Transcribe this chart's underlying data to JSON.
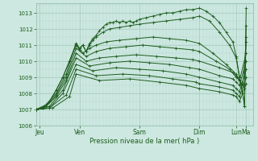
{
  "xlabel": "Pression niveau de la mer( hPa )",
  "ylim": [
    1006.0,
    1013.6
  ],
  "xlim": [
    0,
    130
  ],
  "bg_color": "#cce8e0",
  "grid_color_minor": "#b8d8d0",
  "grid_color_major": "#a8ccbf",
  "line_color": "#1e5c1e",
  "day_labels": [
    "Jeu",
    "Ven",
    "Sam",
    "Dim",
    "Lun",
    "Ma"
  ],
  "day_positions": [
    2,
    26,
    62,
    98,
    120,
    126
  ],
  "yticks": [
    1006,
    1007,
    1008,
    1009,
    1010,
    1011,
    1012,
    1013
  ],
  "series": [
    [
      [
        0,
        1007.0
      ],
      [
        4,
        1007.1
      ],
      [
        8,
        1007.5
      ],
      [
        12,
        1008.2
      ],
      [
        16,
        1009.0
      ],
      [
        20,
        1010.0
      ],
      [
        24,
        1011.1
      ],
      [
        26,
        1010.8
      ],
      [
        28,
        1011.0
      ],
      [
        30,
        1010.6
      ],
      [
        32,
        1011.1
      ],
      [
        34,
        1011.4
      ],
      [
        36,
        1011.6
      ],
      [
        38,
        1011.9
      ],
      [
        40,
        1012.1
      ],
      [
        42,
        1012.3
      ],
      [
        44,
        1012.4
      ],
      [
        46,
        1012.4
      ],
      [
        48,
        1012.5
      ],
      [
        50,
        1012.4
      ],
      [
        52,
        1012.5
      ],
      [
        54,
        1012.4
      ],
      [
        56,
        1012.5
      ],
      [
        58,
        1012.4
      ],
      [
        60,
        1012.5
      ],
      [
        62,
        1012.6
      ],
      [
        66,
        1012.7
      ],
      [
        70,
        1012.8
      ],
      [
        74,
        1012.9
      ],
      [
        78,
        1013.0
      ],
      [
        82,
        1013.0
      ],
      [
        86,
        1013.1
      ],
      [
        90,
        1013.2
      ],
      [
        94,
        1013.2
      ],
      [
        98,
        1013.3
      ],
      [
        102,
        1013.1
      ],
      [
        106,
        1012.8
      ],
      [
        110,
        1012.4
      ],
      [
        114,
        1011.8
      ],
      [
        118,
        1011.2
      ],
      [
        120,
        1010.3
      ],
      [
        122,
        1009.0
      ],
      [
        124,
        1008.0
      ],
      [
        125,
        1007.2
      ],
      [
        126,
        1013.3
      ]
    ],
    [
      [
        0,
        1007.0
      ],
      [
        4,
        1007.1
      ],
      [
        8,
        1007.5
      ],
      [
        12,
        1008.2
      ],
      [
        16,
        1009.0
      ],
      [
        20,
        1010.0
      ],
      [
        24,
        1011.0
      ],
      [
        26,
        1010.7
      ],
      [
        28,
        1011.0
      ],
      [
        30,
        1010.6
      ],
      [
        32,
        1011.0
      ],
      [
        34,
        1011.3
      ],
      [
        36,
        1011.5
      ],
      [
        40,
        1011.8
      ],
      [
        44,
        1012.0
      ],
      [
        50,
        1012.1
      ],
      [
        56,
        1012.2
      ],
      [
        62,
        1012.3
      ],
      [
        70,
        1012.4
      ],
      [
        78,
        1012.5
      ],
      [
        86,
        1012.6
      ],
      [
        94,
        1012.7
      ],
      [
        98,
        1012.8
      ],
      [
        104,
        1012.5
      ],
      [
        110,
        1011.8
      ],
      [
        116,
        1011.0
      ],
      [
        120,
        1010.2
      ],
      [
        122,
        1009.0
      ],
      [
        124,
        1008.0
      ],
      [
        125,
        1007.2
      ],
      [
        126,
        1012.2
      ]
    ],
    [
      [
        0,
        1007.0
      ],
      [
        6,
        1007.3
      ],
      [
        12,
        1008.0
      ],
      [
        18,
        1009.2
      ],
      [
        24,
        1011.1
      ],
      [
        28,
        1010.5
      ],
      [
        32,
        1010.8
      ],
      [
        36,
        1011.0
      ],
      [
        42,
        1011.2
      ],
      [
        50,
        1011.3
      ],
      [
        60,
        1011.4
      ],
      [
        70,
        1011.5
      ],
      [
        80,
        1011.4
      ],
      [
        90,
        1011.3
      ],
      [
        98,
        1011.1
      ],
      [
        106,
        1010.5
      ],
      [
        114,
        1009.8
      ],
      [
        120,
        1009.2
      ],
      [
        122,
        1008.8
      ],
      [
        124,
        1008.5
      ],
      [
        125,
        1008.3
      ],
      [
        126,
        1011.5
      ]
    ],
    [
      [
        0,
        1007.0
      ],
      [
        6,
        1007.2
      ],
      [
        12,
        1007.9
      ],
      [
        18,
        1009.0
      ],
      [
        24,
        1010.8
      ],
      [
        30,
        1010.3
      ],
      [
        36,
        1010.6
      ],
      [
        44,
        1010.8
      ],
      [
        54,
        1010.9
      ],
      [
        64,
        1011.0
      ],
      [
        74,
        1010.9
      ],
      [
        84,
        1010.8
      ],
      [
        94,
        1010.7
      ],
      [
        98,
        1010.6
      ],
      [
        108,
        1010.0
      ],
      [
        116,
        1009.5
      ],
      [
        120,
        1009.0
      ],
      [
        122,
        1008.8
      ],
      [
        124,
        1008.5
      ],
      [
        126,
        1011.2
      ]
    ],
    [
      [
        0,
        1007.0
      ],
      [
        6,
        1007.2
      ],
      [
        12,
        1007.8
      ],
      [
        18,
        1008.8
      ],
      [
        24,
        1010.5
      ],
      [
        30,
        1010.0
      ],
      [
        38,
        1010.2
      ],
      [
        48,
        1010.3
      ],
      [
        60,
        1010.4
      ],
      [
        72,
        1010.3
      ],
      [
        84,
        1010.2
      ],
      [
        94,
        1010.1
      ],
      [
        98,
        1010.0
      ],
      [
        110,
        1009.6
      ],
      [
        118,
        1009.3
      ],
      [
        120,
        1009.1
      ],
      [
        122,
        1008.8
      ],
      [
        126,
        1010.5
      ]
    ],
    [
      [
        0,
        1007.0
      ],
      [
        8,
        1007.2
      ],
      [
        16,
        1008.2
      ],
      [
        24,
        1010.2
      ],
      [
        32,
        1009.7
      ],
      [
        44,
        1009.9
      ],
      [
        56,
        1010.0
      ],
      [
        68,
        1009.9
      ],
      [
        80,
        1009.8
      ],
      [
        92,
        1009.6
      ],
      [
        98,
        1009.5
      ],
      [
        110,
        1009.1
      ],
      [
        118,
        1008.9
      ],
      [
        120,
        1008.7
      ],
      [
        122,
        1008.5
      ],
      [
        126,
        1010.0
      ]
    ],
    [
      [
        0,
        1007.0
      ],
      [
        8,
        1007.1
      ],
      [
        16,
        1008.0
      ],
      [
        24,
        1009.8
      ],
      [
        34,
        1009.4
      ],
      [
        48,
        1009.6
      ],
      [
        62,
        1009.5
      ],
      [
        76,
        1009.4
      ],
      [
        90,
        1009.2
      ],
      [
        98,
        1009.0
      ],
      [
        110,
        1008.7
      ],
      [
        118,
        1008.5
      ],
      [
        120,
        1008.3
      ],
      [
        122,
        1008.1
      ],
      [
        126,
        1009.5
      ]
    ],
    [
      [
        0,
        1007.0
      ],
      [
        8,
        1007.1
      ],
      [
        18,
        1007.9
      ],
      [
        24,
        1009.5
      ],
      [
        36,
        1009.1
      ],
      [
        52,
        1009.2
      ],
      [
        68,
        1009.1
      ],
      [
        82,
        1008.9
      ],
      [
        96,
        1008.7
      ],
      [
        98,
        1008.6
      ],
      [
        110,
        1008.4
      ],
      [
        118,
        1008.2
      ],
      [
        120,
        1008.0
      ],
      [
        122,
        1007.8
      ],
      [
        126,
        1009.0
      ]
    ],
    [
      [
        0,
        1007.0
      ],
      [
        10,
        1007.1
      ],
      [
        20,
        1007.8
      ],
      [
        24,
        1009.2
      ],
      [
        38,
        1008.8
      ],
      [
        56,
        1008.9
      ],
      [
        74,
        1008.7
      ],
      [
        90,
        1008.5
      ],
      [
        98,
        1008.3
      ],
      [
        110,
        1008.1
      ],
      [
        118,
        1007.9
      ],
      [
        120,
        1007.8
      ],
      [
        122,
        1007.5
      ],
      [
        126,
        1008.6
      ]
    ]
  ]
}
